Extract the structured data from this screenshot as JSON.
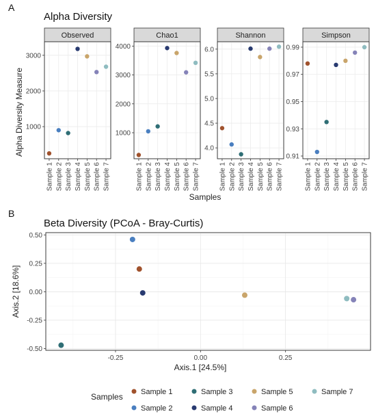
{
  "panel_a": {
    "letter": "A",
    "title": "Alpha Diversity",
    "ylabel": "Alpha Diversity Measure",
    "xlabel": "Samples",
    "samples": [
      "Sample 1",
      "Sample 2",
      "Sample 3",
      "Sample 4",
      "Sample 5",
      "Sample 6",
      "Sample 7"
    ]
  },
  "panel_b": {
    "letter": "B",
    "title": "Beta Diversity (PCoA - Bray-Curtis)",
    "xlabel": "Axis.1   [24.5%]",
    "ylabel": "Axis.2   [18.6%]"
  },
  "legend": {
    "title": "Samples",
    "items": [
      {
        "label": "Sample 1",
        "color": "#a0522d"
      },
      {
        "label": "Sample 2",
        "color": "#4a7fc0"
      },
      {
        "label": "Sample 3",
        "color": "#2f6e75"
      },
      {
        "label": "Sample 4",
        "color": "#283a70"
      },
      {
        "label": "Sample 5",
        "color": "#c9a56b"
      },
      {
        "label": "Sample 6",
        "color": "#8583b8"
      },
      {
        "label": "Sample 7",
        "color": "#8fbcc0"
      }
    ]
  },
  "chart_data": [
    {
      "type": "scatter",
      "facet": "Observed",
      "categories": [
        "Sample 1",
        "Sample 2",
        "Sample 3",
        "Sample 4",
        "Sample 5",
        "Sample 6",
        "Sample 7"
      ],
      "values": [
        250,
        900,
        820,
        3180,
        2970,
        2530,
        2680
      ],
      "ylim": [
        100,
        3380
      ],
      "yticks": [
        1000,
        2000,
        3000
      ],
      "yticklabels": [
        "1000",
        "2000",
        "3000"
      ]
    },
    {
      "type": "scatter",
      "facet": "Chao1",
      "categories": [
        "Sample 1",
        "Sample 2",
        "Sample 3",
        "Sample 4",
        "Sample 5",
        "Sample 6",
        "Sample 7"
      ],
      "values": [
        230,
        1050,
        1220,
        3930,
        3760,
        3090,
        3420
      ],
      "ylim": [
        100,
        4150
      ],
      "yticks": [
        1000,
        2000,
        3000,
        4000
      ],
      "yticklabels": [
        "1000",
        "2000",
        "3000",
        "4000"
      ]
    },
    {
      "type": "scatter",
      "facet": "Shannon",
      "categories": [
        "Sample 1",
        "Sample 2",
        "Sample 3",
        "Sample 4",
        "Sample 5",
        "Sample 6",
        "Sample 7"
      ],
      "values": [
        4.4,
        4.07,
        3.87,
        6.01,
        5.84,
        6.01,
        6.05
      ],
      "ylim": [
        3.78,
        6.15
      ],
      "yticks": [
        4.0,
        4.5,
        5.0,
        5.5,
        6.0
      ],
      "yticklabels": [
        "4.0",
        "4.5",
        "5.0",
        "5.5",
        "6.0"
      ]
    },
    {
      "type": "scatter",
      "facet": "Simpson",
      "categories": [
        "Sample 1",
        "Sample 2",
        "Sample 3",
        "Sample 4",
        "Sample 5",
        "Sample 6",
        "Sample 7"
      ],
      "values": [
        0.978,
        0.913,
        0.935,
        0.977,
        0.98,
        0.986,
        0.99
      ],
      "ylim": [
        0.908,
        0.994
      ],
      "yticks": [
        0.91,
        0.93,
        0.95,
        0.97,
        0.99
      ],
      "yticklabels": [
        "0.91",
        "0.93",
        "0.95",
        "0.97",
        "0.99"
      ]
    },
    {
      "type": "scatter",
      "facet": "PCoA",
      "points": [
        {
          "label": "Sample 1",
          "x": -0.18,
          "y": 0.2
        },
        {
          "label": "Sample 2",
          "x": -0.2,
          "y": 0.46
        },
        {
          "label": "Sample 3",
          "x": -0.41,
          "y": -0.47
        },
        {
          "label": "Sample 4",
          "x": -0.17,
          "y": -0.01
        },
        {
          "label": "Sample 5",
          "x": 0.13,
          "y": -0.03
        },
        {
          "label": "Sample 6",
          "x": 0.45,
          "y": -0.07
        },
        {
          "label": "Sample 7",
          "x": 0.43,
          "y": -0.06
        }
      ],
      "xlim": [
        -0.455,
        0.5
      ],
      "ylim": [
        -0.515,
        0.52
      ],
      "xticks": [
        -0.25,
        0.0,
        0.25
      ],
      "xticklabels": [
        "-0.25",
        "0.00",
        "0.25"
      ],
      "yticks": [
        -0.5,
        -0.25,
        0.0,
        0.25,
        0.5
      ],
      "yticklabels": [
        "-0.50",
        "-0.25",
        "0.00",
        "0.25",
        "0.50"
      ],
      "grid": true
    }
  ]
}
